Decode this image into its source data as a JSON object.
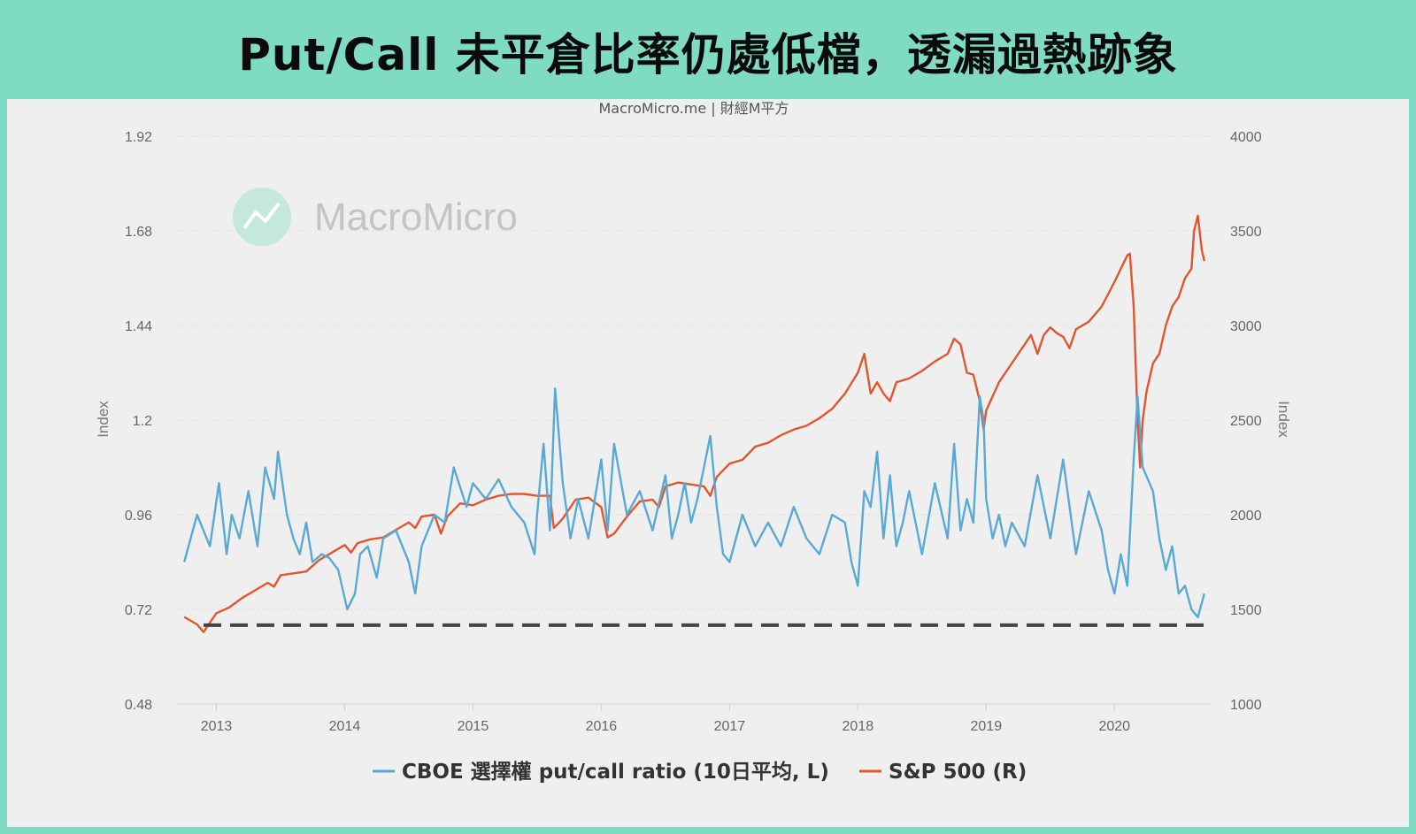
{
  "header": {
    "title": "Put/Call 未平倉比率仍處低檔，透漏過熱跡象"
  },
  "chart_data": {
    "type": "line",
    "credit": "MacroMicro.me | 財經M平方",
    "watermark": "MacroMicro",
    "ylabel_left": "Index",
    "ylabel_right": "Index",
    "yaxis_left": {
      "min": 0.48,
      "max": 1.92,
      "ticks": [
        "0.48",
        "0.72",
        "0.96",
        "1.2",
        "1.44",
        "1.68",
        "1.92"
      ]
    },
    "yaxis_right": {
      "min": 1000,
      "max": 4000,
      "ticks": [
        "1000",
        "1500",
        "2000",
        "2500",
        "3000",
        "3500",
        "4000"
      ]
    },
    "xaxis": {
      "min": 2012.7,
      "max": 2020.75,
      "ticks": [
        "2013",
        "2014",
        "2015",
        "2016",
        "2017",
        "2018",
        "2019",
        "2020"
      ]
    },
    "grid": true,
    "legend_position": "bottom-center",
    "reference_line": {
      "value": 0.68,
      "axis": "left",
      "style": "dashed",
      "color": "#444444"
    },
    "series": [
      {
        "name": "CBOE 選擇權 put/call ratio (10日平均, L)",
        "axis": "left",
        "color": "#58a9d6",
        "x": [
          2012.75,
          2012.85,
          2012.95,
          2013.02,
          2013.08,
          2013.12,
          2013.18,
          2013.25,
          2013.32,
          2013.38,
          2013.45,
          2013.48,
          2013.55,
          2013.6,
          2013.65,
          2013.7,
          2013.75,
          2013.82,
          2013.88,
          2013.95,
          2014.02,
          2014.08,
          2014.12,
          2014.18,
          2014.25,
          2014.3,
          2014.4,
          2014.5,
          2014.55,
          2014.6,
          2014.7,
          2014.78,
          2014.85,
          2014.95,
          2015.0,
          2015.1,
          2015.2,
          2015.3,
          2015.4,
          2015.48,
          2015.5,
          2015.55,
          2015.6,
          2015.64,
          2015.7,
          2015.76,
          2015.82,
          2015.9,
          2016.0,
          2016.05,
          2016.1,
          2016.2,
          2016.3,
          2016.4,
          2016.5,
          2016.55,
          2016.6,
          2016.65,
          2016.7,
          2016.75,
          2016.8,
          2016.85,
          2016.9,
          2016.95,
          2017.0,
          2017.1,
          2017.2,
          2017.3,
          2017.4,
          2017.5,
          2017.6,
          2017.7,
          2017.8,
          2017.9,
          2017.95,
          2018.0,
          2018.05,
          2018.1,
          2018.15,
          2018.2,
          2018.25,
          2018.3,
          2018.35,
          2018.4,
          2018.5,
          2018.6,
          2018.7,
          2018.75,
          2018.8,
          2018.85,
          2018.9,
          2018.95,
          2018.98,
          2019.0,
          2019.05,
          2019.1,
          2019.15,
          2019.2,
          2019.3,
          2019.4,
          2019.5,
          2019.6,
          2019.7,
          2019.8,
          2019.9,
          2019.95,
          2020.0,
          2020.05,
          2020.1,
          2020.15,
          2020.18,
          2020.22,
          2020.3,
          2020.35,
          2020.4,
          2020.45,
          2020.5,
          2020.55,
          2020.6,
          2020.65,
          2020.7
        ],
        "values": [
          0.84,
          0.96,
          0.88,
          1.04,
          0.86,
          0.96,
          0.9,
          1.02,
          0.88,
          1.08,
          1.0,
          1.12,
          0.96,
          0.9,
          0.86,
          0.94,
          0.84,
          0.86,
          0.85,
          0.82,
          0.72,
          0.76,
          0.86,
          0.88,
          0.8,
          0.9,
          0.92,
          0.84,
          0.76,
          0.88,
          0.96,
          0.94,
          1.08,
          0.98,
          1.04,
          1.0,
          1.05,
          0.98,
          0.94,
          0.86,
          0.96,
          1.14,
          0.92,
          1.28,
          1.04,
          0.9,
          1.0,
          0.9,
          1.1,
          0.92,
          1.14,
          0.96,
          1.02,
          0.92,
          1.06,
          0.9,
          0.96,
          1.04,
          0.94,
          1.0,
          1.08,
          1.16,
          0.98,
          0.86,
          0.84,
          0.96,
          0.88,
          0.94,
          0.88,
          0.98,
          0.9,
          0.86,
          0.96,
          0.94,
          0.84,
          0.78,
          1.02,
          0.98,
          1.12,
          0.9,
          1.06,
          0.88,
          0.94,
          1.02,
          0.86,
          1.04,
          0.9,
          1.14,
          0.92,
          1.0,
          0.94,
          1.26,
          1.2,
          1.0,
          0.9,
          0.96,
          0.88,
          0.94,
          0.88,
          1.06,
          0.9,
          1.1,
          0.86,
          1.02,
          0.92,
          0.82,
          0.76,
          0.86,
          0.78,
          1.1,
          1.26,
          1.08,
          1.02,
          0.9,
          0.82,
          0.88,
          0.76,
          0.78,
          0.72,
          0.7,
          0.76
        ]
      },
      {
        "name": "S&P 500 (R)",
        "axis": "right",
        "color": "#e0562e",
        "x": [
          2012.75,
          2012.85,
          2012.9,
          2012.95,
          2013.0,
          2013.1,
          2013.2,
          2013.3,
          2013.4,
          2013.45,
          2013.5,
          2013.6,
          2013.7,
          2013.8,
          2013.9,
          2014.0,
          2014.05,
          2014.1,
          2014.2,
          2014.3,
          2014.4,
          2014.5,
          2014.55,
          2014.6,
          2014.7,
          2014.75,
          2014.8,
          2014.9,
          2015.0,
          2015.1,
          2015.2,
          2015.3,
          2015.4,
          2015.5,
          2015.6,
          2015.63,
          2015.66,
          2015.7,
          2015.8,
          2015.9,
          2016.0,
          2016.05,
          2016.1,
          2016.2,
          2016.3,
          2016.4,
          2016.45,
          2016.5,
          2016.6,
          2016.7,
          2016.8,
          2016.85,
          2016.9,
          2017.0,
          2017.1,
          2017.2,
          2017.3,
          2017.4,
          2017.5,
          2017.6,
          2017.7,
          2017.8,
          2017.9,
          2018.0,
          2018.05,
          2018.1,
          2018.15,
          2018.2,
          2018.25,
          2018.3,
          2018.4,
          2018.5,
          2018.6,
          2018.7,
          2018.75,
          2018.8,
          2018.85,
          2018.9,
          2018.95,
          2018.98,
          2019.0,
          2019.1,
          2019.2,
          2019.3,
          2019.35,
          2019.4,
          2019.45,
          2019.5,
          2019.55,
          2019.6,
          2019.65,
          2019.7,
          2019.8,
          2019.9,
          2020.0,
          2020.05,
          2020.1,
          2020.12,
          2020.15,
          2020.18,
          2020.2,
          2020.22,
          2020.25,
          2020.3,
          2020.35,
          2020.4,
          2020.45,
          2020.5,
          2020.55,
          2020.6,
          2020.62,
          2020.65,
          2020.68,
          2020.7
        ],
        "values": [
          1460,
          1420,
          1380,
          1430,
          1480,
          1510,
          1560,
          1600,
          1640,
          1620,
          1680,
          1690,
          1700,
          1760,
          1800,
          1840,
          1800,
          1850,
          1870,
          1880,
          1920,
          1960,
          1930,
          1990,
          2000,
          1900,
          1990,
          2060,
          2050,
          2080,
          2100,
          2110,
          2110,
          2100,
          2100,
          1930,
          1950,
          1980,
          2080,
          2090,
          2040,
          1880,
          1900,
          1990,
          2070,
          2080,
          2040,
          2150,
          2170,
          2160,
          2150,
          2100,
          2200,
          2270,
          2290,
          2360,
          2380,
          2420,
          2450,
          2470,
          2510,
          2560,
          2640,
          2750,
          2850,
          2640,
          2700,
          2640,
          2600,
          2700,
          2720,
          2760,
          2810,
          2850,
          2930,
          2900,
          2750,
          2740,
          2600,
          2450,
          2550,
          2700,
          2800,
          2900,
          2950,
          2850,
          2950,
          2990,
          2960,
          2940,
          2880,
          2980,
          3020,
          3100,
          3230,
          3300,
          3370,
          3380,
          3100,
          2500,
          2250,
          2500,
          2650,
          2800,
          2850,
          3000,
          3100,
          3150,
          3250,
          3300,
          3500,
          3580,
          3400,
          3340
        ]
      }
    ]
  }
}
